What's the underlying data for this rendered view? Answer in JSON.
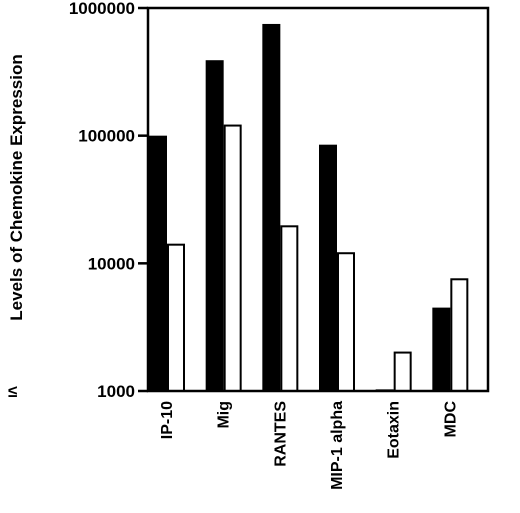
{
  "chart_data": {
    "type": "bar",
    "title": "",
    "ylabel": "Levels  of  Chemokine  Expression",
    "xlabel": "",
    "yscale": "log",
    "ylim": [
      1000,
      1000000
    ],
    "yticks": [
      1000000,
      100000,
      10000,
      1000
    ],
    "ytick_labels": [
      "1000000",
      "100000",
      "10000",
      "1000"
    ],
    "ymin_marker": "≤",
    "grid": false,
    "legend": "none",
    "categories": [
      "IP-10",
      "Mig",
      "RANTES",
      "MIP-1 alpha",
      "Eotaxin",
      "MDC"
    ],
    "series": [
      {
        "color": "#000000",
        "fill": "solid",
        "values": [
          100000,
          390000,
          750000,
          85000,
          1030,
          4500
        ]
      },
      {
        "color": "#000000",
        "fill": "open",
        "values": [
          14000,
          120000,
          19500,
          12000,
          2000,
          7500
        ]
      }
    ]
  }
}
